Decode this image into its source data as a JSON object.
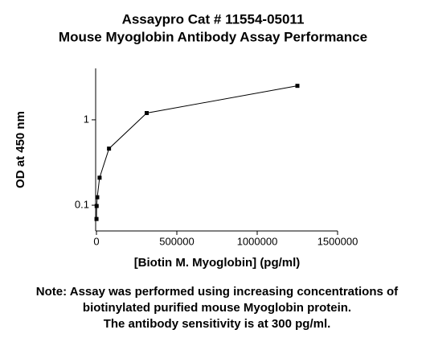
{
  "chart_data": {
    "type": "line",
    "title": "Assaypro Cat # 11554-05011",
    "subtitle": "Mouse Myoglobin Antibody Assay Performance",
    "x_label": "[Biotin M. Myoglobin] (pg/ml)",
    "y_label": "OD at 450 nm",
    "note": [
      "Note: Assay was performed using increasing concentrations of",
      "biotinylated purified mouse Myoglobin protein.",
      "The antibody sensitivity is at 300 pg/ml."
    ],
    "x": [
      305,
      1221,
      4883,
      19531,
      78125,
      312500,
      1250000
    ],
    "values": [
      0.069,
      0.098,
      0.124,
      0.21,
      0.46,
      1.2,
      2.5
    ],
    "color": "#000000",
    "marker": "square",
    "xlim": [
      0,
      1500000
    ],
    "xticks": [
      0,
      500000,
      1000000,
      1500000
    ],
    "ylim": [
      0.05,
      4
    ],
    "yticks": [
      0.1,
      1
    ],
    "y_log": true
  }
}
